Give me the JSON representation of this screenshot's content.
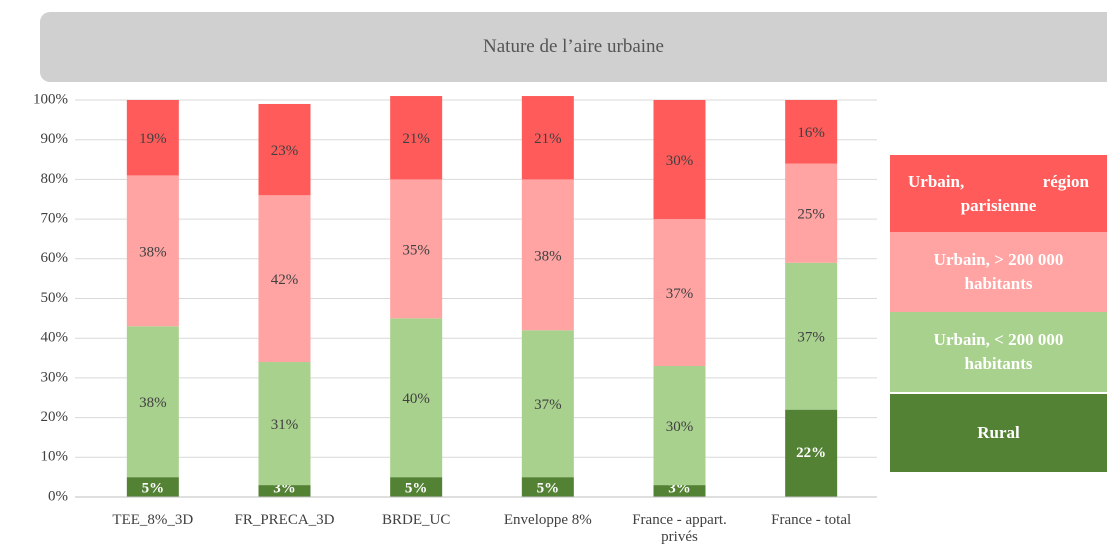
{
  "chart_data": {
    "type": "stacked_bar",
    "title": "Nature de l’aire urbaine",
    "categories": [
      "TEE_8%_3D",
      "FR_PRECA_3D",
      "BRDE_UC",
      "Enveloppe 8%",
      "France - appart. privés",
      "France - total"
    ],
    "series": [
      {
        "name": "Rural",
        "color": "#548235",
        "values": [
          5,
          3,
          5,
          5,
          3,
          22
        ],
        "value_labels": [
          "5%",
          "3%",
          "5%",
          "5%",
          "3%",
          "22%"
        ]
      },
      {
        "name": "Urbain, < 200 000 habitants",
        "color": "#a9d18e",
        "values": [
          38,
          31,
          40,
          37,
          30,
          37
        ],
        "value_labels": [
          "38%",
          "31%",
          "40%",
          "37%",
          "30%",
          "37%"
        ]
      },
      {
        "name": "Urbain, > 200 000 habitants",
        "color": "#ffa3a3",
        "values": [
          38,
          42,
          35,
          38,
          37,
          25
        ],
        "value_labels": [
          "38%",
          "42%",
          "35%",
          "38%",
          "37%",
          "25%"
        ]
      },
      {
        "name": "Urbain, région parisienne",
        "color": "#ff5b5b",
        "values": [
          19,
          23,
          21,
          21,
          30,
          16
        ],
        "value_labels": [
          "19%",
          "23%",
          "21%",
          "21%",
          "30%",
          "16%"
        ]
      }
    ],
    "ylim": [
      0,
      100
    ],
    "yticks": [
      {
        "value": 0,
        "label": "0%"
      },
      {
        "value": 10,
        "label": "10%"
      },
      {
        "value": 20,
        "label": "20%"
      },
      {
        "value": 30,
        "label": "30%"
      },
      {
        "value": 40,
        "label": "40%"
      },
      {
        "value": 50,
        "label": "50%"
      },
      {
        "value": 60,
        "label": "60%"
      },
      {
        "value": 70,
        "label": "70%"
      },
      {
        "value": 80,
        "label": "80%"
      },
      {
        "value": 90,
        "label": "90%"
      },
      {
        "value": 100,
        "label": "100%"
      }
    ],
    "grid": true,
    "legend": "right"
  }
}
